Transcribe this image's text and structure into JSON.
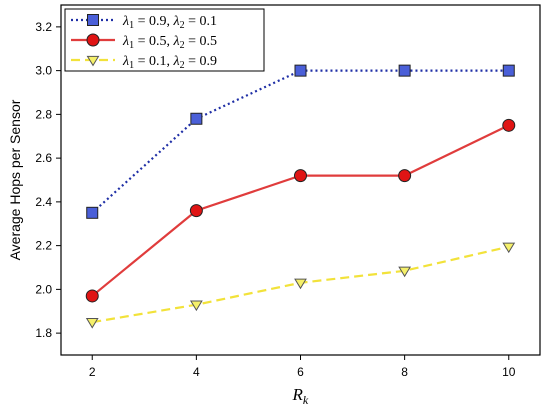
{
  "chart_data": {
    "type": "line",
    "x": [
      2,
      4,
      6,
      8,
      10
    ],
    "xticks": [
      "2",
      "4",
      "6",
      "8",
      "10"
    ],
    "yticks": [
      "1.8",
      "2.0",
      "2.2",
      "2.4",
      "2.6",
      "2.8",
      "3.0",
      "3.2"
    ],
    "xlim": [
      1.4,
      10.6
    ],
    "ylim": [
      1.7,
      3.3
    ],
    "xlabel": "R",
    "xlabel_sub": "k",
    "ylabel": "Average Hops per Sensor",
    "legend_position": "top-left",
    "grid": false,
    "series": [
      {
        "name": "λ1 = 0.9, λ2 = 0.1",
        "name_parts": [
          "λ",
          "1",
          " = 0.9, ",
          "λ",
          "2",
          " = 0.1"
        ],
        "values": [
          2.35,
          2.78,
          3.0,
          3.0,
          3.0
        ],
        "color": "#1f2fa6",
        "marker": "square",
        "marker_color": "#4a5fd8",
        "line_style": "dotted"
      },
      {
        "name": "λ1 = 0.5, λ2 = 0.5",
        "name_parts": [
          "λ",
          "1",
          " = 0.5, ",
          "λ",
          "2",
          " = 0.5"
        ],
        "values": [
          1.97,
          2.36,
          2.52,
          2.52,
          2.75
        ],
        "color": "#e03c3c",
        "marker": "circle",
        "marker_color": "#e01414",
        "line_style": "solid"
      },
      {
        "name": "λ1 = 0.1, λ2 = 0.9",
        "name_parts": [
          "λ",
          "1",
          " = 0.1, ",
          "λ",
          "2",
          " = 0.9"
        ],
        "values": [
          1.85,
          1.93,
          2.03,
          2.085,
          2.195
        ],
        "color": "#f2e23a",
        "marker": "triangle-down",
        "marker_color": "#f5f06a",
        "line_style": "dashed"
      }
    ]
  }
}
